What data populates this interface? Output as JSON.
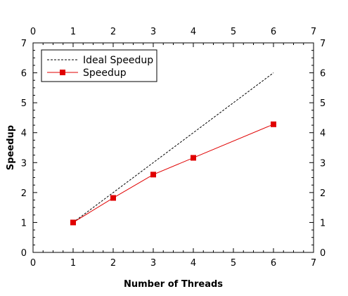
{
  "chart_data": {
    "type": "line",
    "title": "",
    "xlabel": "Number of Threads",
    "ylabel": "Speedup",
    "xlim": [
      0,
      7
    ],
    "ylim": [
      0,
      7
    ],
    "x_ticks": [
      "0",
      "1",
      "2",
      "3",
      "4",
      "5",
      "6",
      "7"
    ],
    "y_ticks": [
      "0",
      "1",
      "2",
      "3",
      "4",
      "5",
      "6",
      "7"
    ],
    "grid": false,
    "legend_position": "top-left",
    "series": [
      {
        "name": "Ideal Speedup",
        "style": "dashed",
        "marker": "none",
        "color": "#000000",
        "x": [
          1,
          6
        ],
        "y": [
          1,
          6
        ]
      },
      {
        "name": "Speedup",
        "style": "solid",
        "marker": "square",
        "color": "#e00000",
        "x": [
          1,
          2,
          3,
          4,
          6
        ],
        "y": [
          1.0,
          1.82,
          2.6,
          3.16,
          4.28
        ]
      }
    ]
  }
}
